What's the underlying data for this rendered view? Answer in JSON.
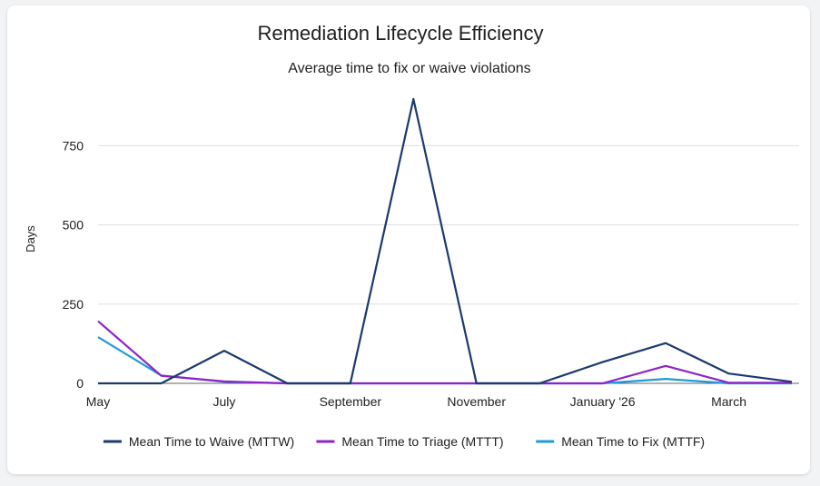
{
  "chart_data": {
    "type": "line",
    "title": "Remediation Lifecycle Efficiency",
    "subtitle": "Average time to fix or waive violations",
    "ylabel": "Days",
    "xlabel": "",
    "ylim": [
      0,
      900
    ],
    "yticks": [
      0,
      250,
      500,
      750
    ],
    "grid": true,
    "legend_position": "bottom",
    "x": [
      "2025-05",
      "2025-06",
      "2025-07",
      "2025-08",
      "2025-09",
      "2025-10",
      "2025-11",
      "2025-12",
      "2026-01",
      "2026-02",
      "2026-03",
      "2026-04"
    ],
    "xtick_labels": [
      {
        "x": "2025-05",
        "label": "May"
      },
      {
        "x": "2025-07",
        "label": "July"
      },
      {
        "x": "2025-09",
        "label": "September"
      },
      {
        "x": "2025-11",
        "label": "November"
      },
      {
        "x": "2026-01",
        "label": "January '26"
      },
      {
        "x": "2026-03",
        "label": "March"
      }
    ],
    "series": [
      {
        "name": "Mean Time to Waive (MTTW)",
        "color": "#1a3a6e",
        "values": [
          0,
          0,
          103,
          0,
          0,
          897,
          0,
          0,
          67,
          127,
          31,
          5
        ]
      },
      {
        "name": "Mean Time to Triage (MTTT)",
        "color": "#8e24c8",
        "values": [
          196,
          24,
          6,
          0,
          0,
          0,
          0,
          0,
          0,
          55,
          2,
          2
        ]
      },
      {
        "name": "Mean Time to Fix (MTTF)",
        "color": "#1e9bd7",
        "values": [
          146,
          25,
          5,
          0,
          0,
          0,
          0,
          0,
          0,
          14,
          0,
          0
        ]
      }
    ]
  }
}
